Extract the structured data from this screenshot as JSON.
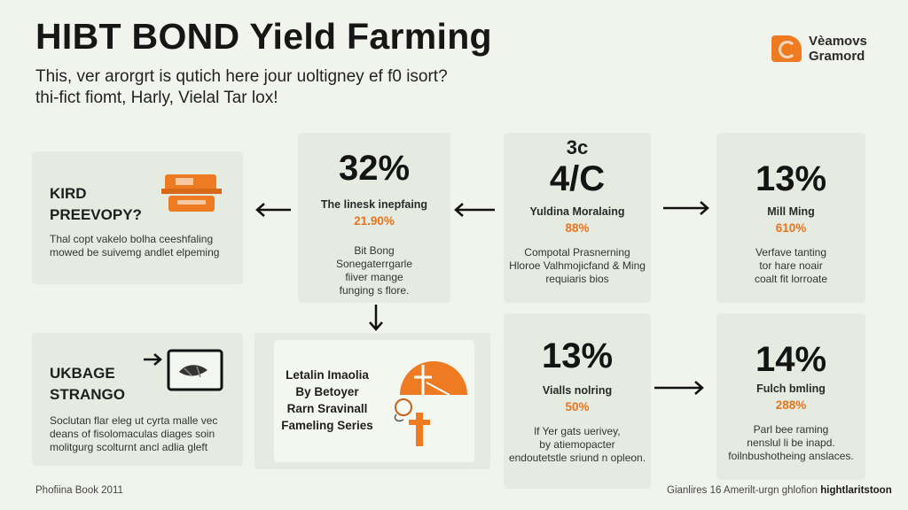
{
  "header": {
    "title": "HIBT BOND Yield Farming",
    "subtitle_line1": "This, ver arorgrt is qutich here jour uoltigney ef f0 isort?",
    "subtitle_line2": "thi-fict fiomt, Harly, Vielal Tar lox!"
  },
  "logo": {
    "line1": "Vèamovs",
    "line2": "Gramord"
  },
  "left_top": {
    "title_line1": "KIRD",
    "title_line2": "PREEVOPY?",
    "desc_line1": "Thal copt vakelo bolha ceeshfaling",
    "desc_line2": "mowed be suivemg andlet elpeming"
  },
  "left_bottom": {
    "title_line1": "UKBAGE",
    "title_line2": "STRANGO",
    "desc_line1": "Soclutan flar eleg ut cyrta malle vec",
    "desc_line2": "deans of fisolomaculas diages soin",
    "desc_line3": "molitgurg scolturnt ancl adlia gleft"
  },
  "card_32": {
    "value": "32%",
    "label": "The linesk inepfaing",
    "pct": "21.90%",
    "desc_line1": "Bit Bong",
    "desc_line2": "Sonegaterrgarle",
    "desc_line3": "fiiver mange",
    "desc_line4": "funging s flore."
  },
  "card_4c": {
    "top": "3c",
    "value": "4/C",
    "label": "Yuldina Moralaing",
    "pct": "88%",
    "desc_line1": "Compotal Prasnerning",
    "desc_line2": "Hloroe Valhmojicfand & Ming",
    "desc_line3": "requiaris bios"
  },
  "card_13a": {
    "value": "13%",
    "label": "Mill Ming",
    "pct": "610%",
    "desc_line1": "Verfave tanting",
    "desc_line2": "tor hare noair",
    "desc_line3": "coalt fit lorroate"
  },
  "card_middle": {
    "line1": "Letalin Imaolia",
    "line2": "By Betoyer",
    "line3": "Rarn Sravinall",
    "line4": "Fameling Series"
  },
  "card_13b": {
    "value": "13%",
    "label": "Vialls nolring",
    "pct": "50%",
    "desc_line1": "lf Yer gats uerivey,",
    "desc_line2": "by atiemopacter",
    "desc_line3": "endoutetstle sriund n opleon."
  },
  "card_14": {
    "value": "14%",
    "label": "Fulch bmling",
    "pct": "288%",
    "desc_line1": "Parl bee raming",
    "desc_line2": "nenslul li be inapd.",
    "desc_line3": "foilnbushotheing anslaces."
  },
  "footer": {
    "left": "Phofiina Book 2011",
    "right_prefix": "Gianlires 16 Amerilt-urgn ghlofion",
    "right_bold": "hightlaritstoon"
  },
  "colors": {
    "accent": "#ee7b22",
    "background": "#f1f4ec",
    "card": "#e6ebe2"
  }
}
